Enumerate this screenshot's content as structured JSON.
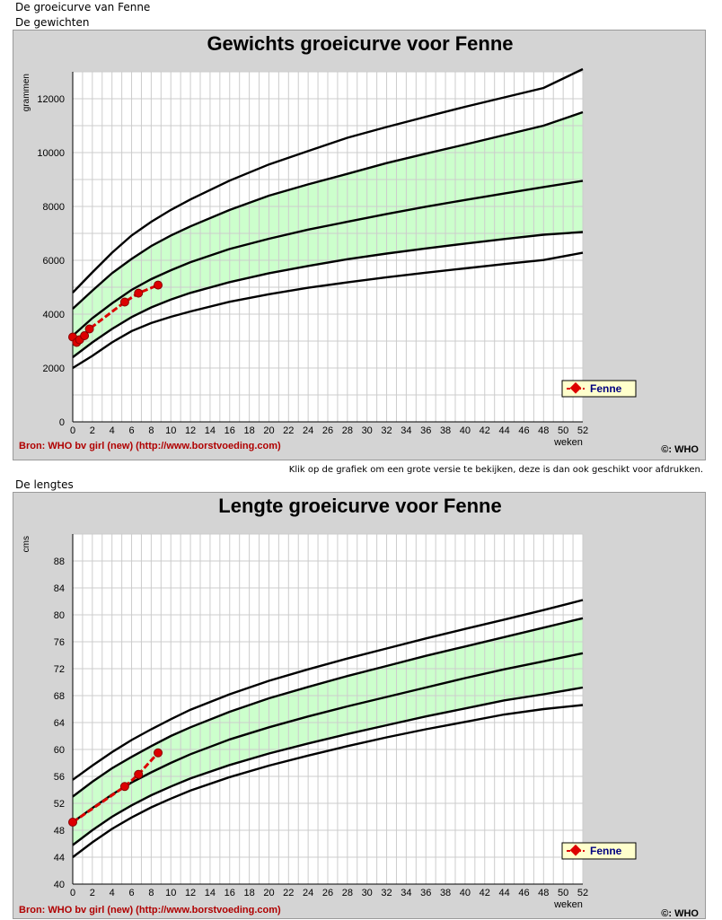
{
  "page": {
    "title": "De groeicurve van Fenne",
    "weights_heading": "De gewichten",
    "print_note": "Klik op de grafiek om een grote versie te bekijken, deze is dan ook geschikt voor afdrukken.",
    "lengths_heading": "De lengtes"
  },
  "chart_data": [
    {
      "type": "line",
      "title": "Gewichts groeicurve voor Fenne",
      "ylabel": "grammen",
      "xlabel": "weken",
      "source": "Bron: WHO bv girl (new) (http://www.borstvoeding.com)",
      "copyright": "©: WHO",
      "xlim": [
        0,
        52
      ],
      "ylim": [
        0,
        13000
      ],
      "x_ticks": [
        0,
        2,
        4,
        6,
        8,
        10,
        12,
        14,
        16,
        18,
        20,
        22,
        24,
        26,
        28,
        30,
        32,
        34,
        36,
        38,
        40,
        42,
        44,
        46,
        48,
        50,
        52
      ],
      "y_ticks": [
        0,
        2000,
        4000,
        6000,
        8000,
        10000,
        12000
      ],
      "grid": true,
      "legend_position": "bottom-right",
      "band_color": "#ccffcc",
      "series_color": "#dd0000",
      "curves": {
        "x": [
          0,
          2,
          4,
          6,
          8,
          10,
          12,
          16,
          20,
          24,
          28,
          32,
          36,
          40,
          44,
          48,
          52
        ],
        "outer_high": [
          4800,
          5550,
          6280,
          6920,
          7430,
          7870,
          8260,
          8960,
          9560,
          10060,
          10550,
          10950,
          11330,
          11700,
          12050,
          12400,
          13100
        ],
        "band_high": [
          4200,
          4870,
          5520,
          6050,
          6530,
          6920,
          7260,
          7870,
          8400,
          8820,
          9210,
          9610,
          9960,
          10300,
          10650,
          11000,
          11500
        ],
        "median": [
          3200,
          3850,
          4400,
          4900,
          5300,
          5630,
          5930,
          6420,
          6800,
          7140,
          7430,
          7720,
          7990,
          8240,
          8480,
          8720,
          8950
        ],
        "band_low": [
          2400,
          2950,
          3450,
          3890,
          4250,
          4540,
          4790,
          5190,
          5520,
          5790,
          6040,
          6250,
          6440,
          6620,
          6790,
          6950,
          7050
        ],
        "outer_low": [
          2000,
          2450,
          2950,
          3370,
          3670,
          3900,
          4100,
          4460,
          4740,
          4980,
          5180,
          5370,
          5540,
          5700,
          5860,
          6010,
          6280
        ]
      },
      "series": [
        {
          "name": "Fenne",
          "x": [
            0,
            0.4,
            0.7,
            1.2,
            1.7,
            5.3,
            6.7,
            8.7
          ],
          "y": [
            3150,
            2950,
            3050,
            3200,
            3450,
            4450,
            4780,
            5080
          ]
        }
      ]
    },
    {
      "type": "line",
      "title": "Lengte groeicurve voor Fenne",
      "ylabel": "cms",
      "xlabel": "weken",
      "source": "Bron: WHO bv girl (new) (http://www.borstvoeding.com)",
      "copyright": "©: WHO",
      "xlim": [
        0,
        52
      ],
      "ylim": [
        40,
        92
      ],
      "x_ticks": [
        0,
        2,
        4,
        6,
        8,
        10,
        12,
        14,
        16,
        18,
        20,
        22,
        24,
        26,
        28,
        30,
        32,
        34,
        36,
        38,
        40,
        42,
        44,
        46,
        48,
        50,
        52
      ],
      "y_ticks": [
        40,
        44,
        48,
        52,
        56,
        60,
        64,
        68,
        72,
        76,
        80,
        84,
        88
      ],
      "grid": true,
      "legend_position": "bottom-right",
      "band_color": "#ccffcc",
      "series_color": "#dd0000",
      "curves": {
        "x": [
          0,
          2,
          4,
          6,
          8,
          10,
          12,
          16,
          20,
          24,
          28,
          32,
          36,
          40,
          44,
          48,
          52
        ],
        "outer_high": [
          55.5,
          57.6,
          59.6,
          61.4,
          63.0,
          64.5,
          65.9,
          68.2,
          70.2,
          71.9,
          73.5,
          75.0,
          76.5,
          77.9,
          79.3,
          80.7,
          82.2
        ],
        "band_high": [
          53.0,
          55.2,
          57.2,
          58.9,
          60.5,
          62.0,
          63.3,
          65.6,
          67.6,
          69.3,
          70.9,
          72.4,
          73.9,
          75.3,
          76.7,
          78.1,
          79.5
        ],
        "median": [
          49.2,
          51.3,
          53.3,
          55.1,
          56.6,
          58.0,
          59.3,
          61.5,
          63.3,
          64.9,
          66.4,
          67.8,
          69.2,
          70.6,
          71.9,
          73.1,
          74.3
        ],
        "band_low": [
          45.8,
          48.0,
          50.0,
          51.7,
          53.2,
          54.5,
          55.7,
          57.7,
          59.4,
          60.9,
          62.3,
          63.6,
          64.9,
          66.1,
          67.3,
          68.2,
          69.2
        ],
        "outer_low": [
          44.0,
          46.2,
          48.2,
          49.9,
          51.4,
          52.7,
          53.9,
          55.9,
          57.6,
          59.1,
          60.5,
          61.8,
          63.0,
          64.1,
          65.2,
          66.0,
          66.6
        ]
      },
      "series": [
        {
          "name": "Fenne",
          "x": [
            0,
            5.3,
            6.7,
            8.7
          ],
          "y": [
            49.2,
            54.5,
            56.3,
            59.5
          ]
        }
      ]
    }
  ]
}
